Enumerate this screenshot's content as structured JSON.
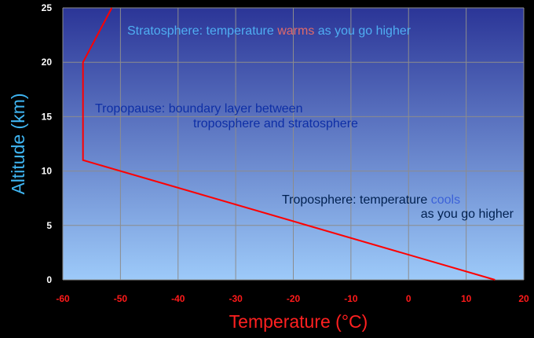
{
  "colors": {
    "background": "#000000",
    "plot_top": "#2b3597",
    "plot_bottom": "#9dcaf9",
    "grid": "#8c8c8c",
    "line": "#ff0000",
    "x_tick": "#ff1a1a",
    "y_tick": "#ffffff",
    "x_label": "#ff2020",
    "y_label": "#3fb5f2",
    "ann_strat": "#4faef2",
    "ann_warm": "#e06a6a",
    "ann_tropo": "#0e2fa6",
    "ann_tropo_lower": "#002050",
    "ann_cool": "#3c62d8"
  },
  "chart_data": {
    "type": "line",
    "xlabel": "Temperature (°C)",
    "ylabel": "Altitude (km)",
    "xlim": [
      -60,
      20
    ],
    "ylim": [
      0,
      25
    ],
    "xticks": [
      -60,
      -50,
      -40,
      -30,
      -20,
      -10,
      0,
      10,
      20
    ],
    "yticks": [
      0,
      5,
      10,
      15,
      20,
      25
    ],
    "grid": true,
    "series": [
      {
        "x": [
          15,
          -56.5,
          -56.5,
          -56.5,
          -51.5
        ],
        "y": [
          0,
          11,
          12,
          20,
          25
        ]
      }
    ],
    "annotations": {
      "stratosphere": {
        "before": "Stratosphere: temperature ",
        "highlight": "warms",
        "after": " as you go higher"
      },
      "tropopause": {
        "line1": "Tropopause: boundary layer between",
        "line2": "troposphere and stratosphere"
      },
      "troposphere": {
        "before": "Troposphere: temperature ",
        "highlight": "cools",
        "line2": "as you go higher"
      }
    }
  }
}
